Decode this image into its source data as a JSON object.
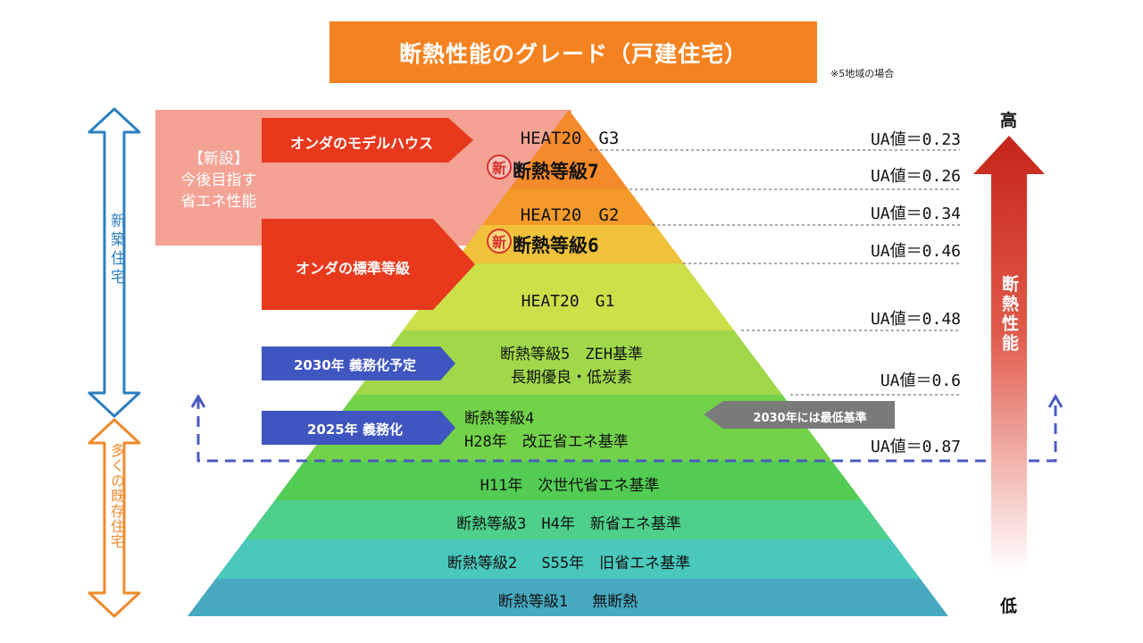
{
  "title": "断熱性能のグレード（戸建住宅）",
  "note": "※5地域の場合",
  "levels": [
    {
      "label": "HEAT20　G3",
      "color": "#f58a2a"
    },
    {
      "label": "断熱等級7",
      "badge": "新",
      "color": "#f58a2a"
    },
    {
      "label": "HEAT20　G2",
      "color": "#f39a2a"
    },
    {
      "label": "断熱等級6",
      "badge": "新",
      "color": "#f0c23a"
    },
    {
      "label": "HEAT20　G1",
      "color": "#cce04a"
    },
    {
      "label": [
        "断熱等級5　ZEH基準",
        "長期優良・低炭素"
      ],
      "color": "#a0d84a"
    },
    {
      "label": [
        "断熱等級4",
        "H28年　改正省エネ基準"
      ],
      "color": "#72d24a"
    },
    {
      "label": "H11年　次世代省エネ基準",
      "color": "#52cc52"
    },
    {
      "label": "断熱等級3　H4年　新省エネ基準",
      "color": "#4ed08a"
    },
    {
      "label": "断熱等級2　 S55年　旧省エネ基準",
      "color": "#4ac8bc"
    },
    {
      "label": "断熱等級1　 無断熱",
      "color": "#46a9c0"
    }
  ],
  "ua_values": [
    "UA値＝0.23",
    "UA値＝0.26",
    "UA値＝0.34",
    "UA値＝0.46",
    "UA値＝0.48",
    "UA値＝0.6",
    "UA値＝0.87"
  ],
  "callouts": {
    "new_box": [
      "【新設】",
      "今後目指す",
      "省エネ性能"
    ],
    "model_house": "オンダのモデルハウス",
    "standard": "オンダの標準等級",
    "mandate_2030": "2030年 義務化予定",
    "mandate_2025": "2025年 義務化",
    "min_2030": "2030年には最低基準"
  },
  "side": {
    "new_homes": "新築住宅",
    "existing_homes": "多くの既存住宅"
  },
  "performance": {
    "high": "高",
    "low": "低",
    "label": "断熱性能"
  },
  "colors": {
    "title": "#f58220",
    "callout_red": "#e8391d",
    "callout_blue": "#3f55c0",
    "new_box": "#f3a294",
    "new_homes_arrow": "#2b7fc0",
    "existing_homes_arrow": "#f08a2a",
    "dashed_line": "#4a5bbf",
    "min_arrow": "#7a7a7a"
  }
}
